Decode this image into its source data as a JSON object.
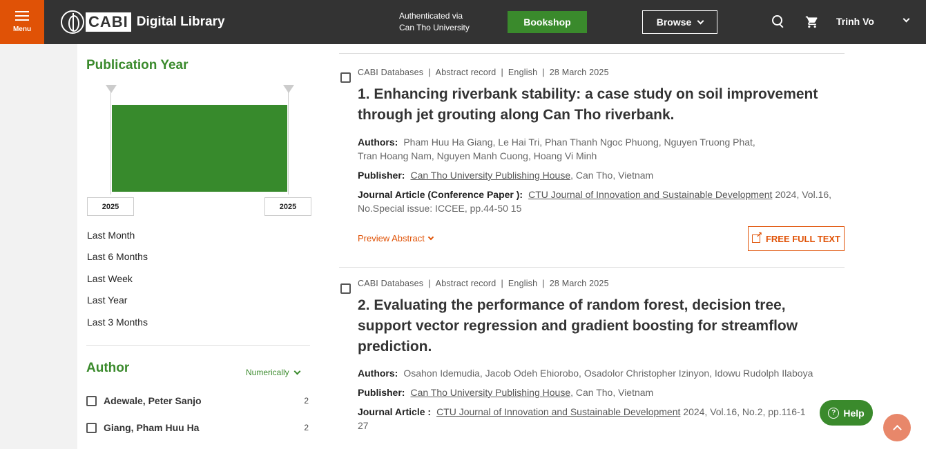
{
  "header": {
    "menu_label": "Menu",
    "logo_cabi": "CABI",
    "logo_text": "Digital Library",
    "auth_line1": "Authenticated via",
    "auth_line2": "Can Tho University",
    "bookshop_label": "Bookshop",
    "browse_label": "Browse",
    "user_name": "Trinh Vo"
  },
  "sidebar": {
    "pub_year": {
      "title": "Publication Year",
      "from": "2025",
      "to": "2025",
      "links": [
        "Last Month",
        "Last 6 Months",
        "Last Week",
        "Last Year",
        "Last 3 Months"
      ]
    },
    "author": {
      "title": "Author",
      "sort_label": "Numerically",
      "items": [
        {
          "name": "Adewale, Peter Sanjo",
          "count": "2"
        },
        {
          "name": "Giang, Pham Huu Ha",
          "count": "2"
        }
      ]
    }
  },
  "results": [
    {
      "source": "CABI Databases",
      "type": "Abstract record",
      "language": "English",
      "date": "28 March 2025",
      "title_line1": "1. Enhancing riverbank stability: a case study on soil improvement",
      "title_line2": "through jet grouting along Can Tho riverbank.",
      "authors_label": "Authors:",
      "authors_line1": "Pham Huu Ha Giang, Le Hai Tri, Phan Thanh Ngoc Phuong, Nguyen Truong Phat,",
      "authors_line2": "Tran Hoang Nam, Nguyen Manh Cuong, Hoang Vi Minh",
      "publisher_label": "Publisher:",
      "publisher": "Can Tho University Publishing House",
      "publisher_loc": ", Can Tho, Vietnam",
      "journal_label": "Journal Article (Conference Paper ):",
      "journal": "CTU Journal of Innovation and Sustainable Development",
      "journal_detail_1": "2024, Vol.16,",
      "journal_detail_2": "No.Special issue: ICCEE, pp.44-50 15",
      "preview_label": "Preview Abstract",
      "fulltext_label": "FREE FULL TEXT"
    },
    {
      "source": "CABI Databases",
      "type": "Abstract record",
      "language": "English",
      "date": "28 March 2025",
      "title_line1": "2. Evaluating the performance of random forest, decision tree,",
      "title_line2": "support vector regression and gradient boosting for streamflow",
      "title_line3": "prediction.",
      "authors_label": "Authors:",
      "authors_line1": "Osahon Idemudia, Jacob Odeh Ehiorobo, Osadolor Christopher Izinyon, Idowu Rudolph Ilaboya",
      "publisher_label": "Publisher:",
      "publisher": "Can Tho University Publishing House",
      "publisher_loc": ", Can Tho, Vietnam",
      "journal_label": "Journal Article :",
      "journal": "CTU Journal of Innovation and Sustainable Development",
      "journal_detail_1": "2024, Vol.16, No.2, pp.116-1",
      "journal_detail_2": "27"
    }
  ],
  "floating": {
    "help_label": "Help",
    "help_icon_glyph": "?"
  },
  "colors": {
    "brand_orange": "#e05206",
    "brand_green": "#3a8a2c",
    "header_bg": "#333333"
  }
}
